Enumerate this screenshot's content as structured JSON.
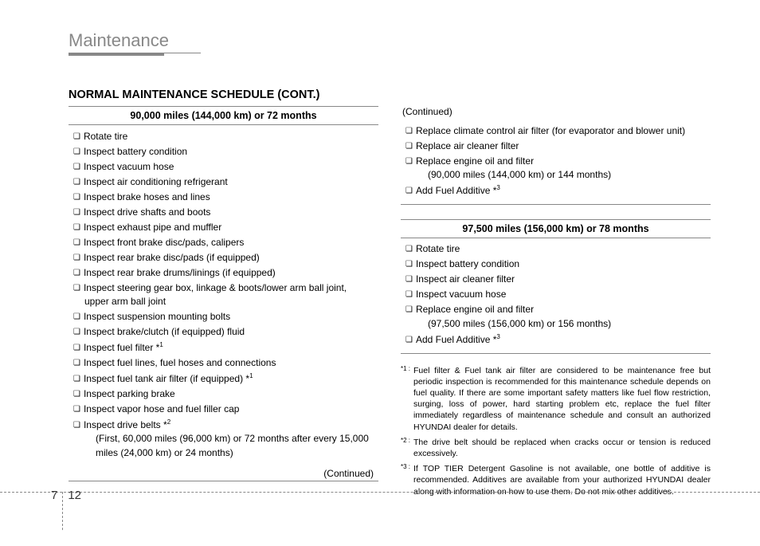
{
  "section_title": "Maintenance",
  "main_heading": "NORMAL MAINTENANCE SCHEDULE (CONT.)",
  "left": {
    "header": "90,000 miles (144,000 km) or 72 months",
    "items": [
      {
        "text": "Rotate tire"
      },
      {
        "text": "Inspect battery condition"
      },
      {
        "text": "Inspect vacuum hose"
      },
      {
        "text": "Inspect air conditioning refrigerant"
      },
      {
        "text": "Inspect brake hoses and lines"
      },
      {
        "text": "Inspect drive shafts and boots"
      },
      {
        "text": "Inspect exhaust pipe and muffler"
      },
      {
        "text": "Inspect front brake disc/pads, calipers"
      },
      {
        "text": "Inspect rear brake disc/pads (if equipped)"
      },
      {
        "text": "Inspect rear brake drums/linings (if equipped)"
      },
      {
        "text": "Inspect steering gear box, linkage & boots/lower arm ball joint, upper arm ball joint"
      },
      {
        "text": "Inspect suspension mounting bolts"
      },
      {
        "text": "Inspect brake/clutch (if equipped) fluid"
      },
      {
        "text": "Inspect fuel filter *",
        "sup": "1"
      },
      {
        "text": "Inspect fuel lines, fuel hoses and connections"
      },
      {
        "text": "Inspect fuel tank air filter (if equipped) *",
        "sup": "1"
      },
      {
        "text": "Inspect parking brake"
      },
      {
        "text": "Inspect vapor hose and fuel filler cap"
      },
      {
        "text": "Inspect drive belts *",
        "sup": "2",
        "sub": "(First, 60,000 miles (96,000 km) or 72 months after every 15,000 miles (24,000 km) or 24 months)"
      }
    ],
    "continued": "(Continued)"
  },
  "right_top": {
    "continued": "(Continued)",
    "items": [
      {
        "text": "Replace climate control air filter (for evaporator and blower unit)"
      },
      {
        "text": "Replace air cleaner filter"
      },
      {
        "text": "Replace engine oil and filter",
        "sub": "(90,000 miles (144,000 km) or 144 months)"
      },
      {
        "text": "Add Fuel Additive *",
        "sup": "3"
      }
    ]
  },
  "right_bottom": {
    "header": "97,500 miles (156,000 km) or 78 months",
    "items": [
      {
        "text": "Rotate tire"
      },
      {
        "text": "Inspect battery condition"
      },
      {
        "text": "Inspect air cleaner filter"
      },
      {
        "text": "Inspect vacuum hose"
      },
      {
        "text": "Replace engine oil and filter",
        "sub": "(97,500 miles (156,000 km) or 156 months)"
      },
      {
        "text": "Add Fuel Additive *",
        "sup": "3"
      }
    ]
  },
  "footnotes": [
    {
      "label": "*1 :",
      "text": "Fuel filter & Fuel tank air filter are considered to be maintenance free but periodic inspection is recommended for this maintenance schedule depends on fuel quality. If there are some important safety matters like fuel flow restriction, surging, loss of power, hard starting problem etc, replace the fuel filter immediately regardless of maintenance schedule and consult an authorized HYUNDAI dealer for details."
    },
    {
      "label": "*2 :",
      "text": "The drive belt should be replaced when cracks occur or tension is reduced excessively."
    },
    {
      "label": "*3 :",
      "text": "If TOP TIER Detergent Gasoline is not available, one bottle of additive is recommended. Additives are available from your authorized HYUNDAI dealer along with information on how to use them. Do not mix other additives."
    }
  ],
  "page": {
    "chapter": "7",
    "number": "12"
  }
}
